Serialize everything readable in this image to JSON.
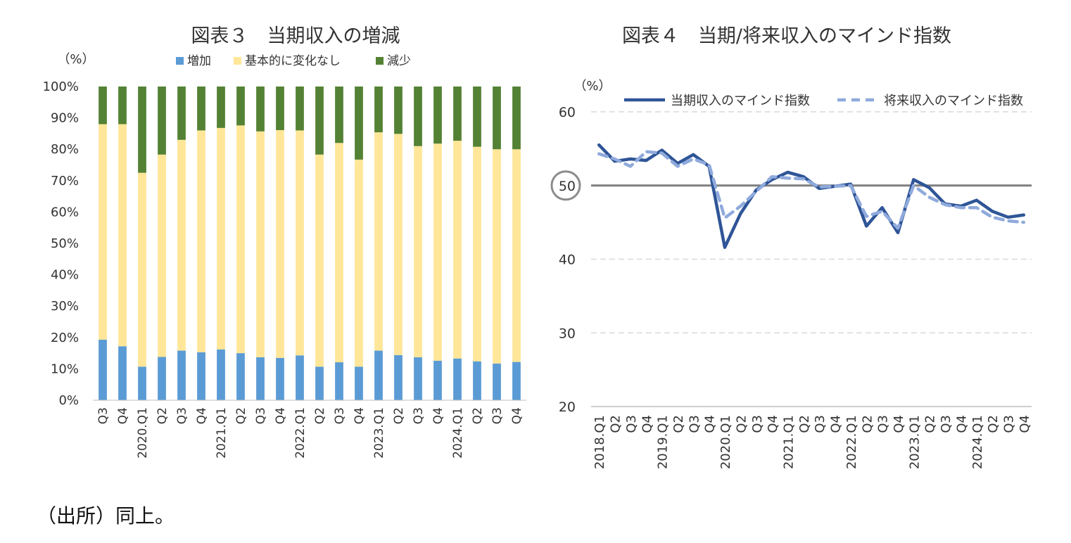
{
  "source_note": "（出所）同上。",
  "chart_data": [
    {
      "type": "bar",
      "stacked": true,
      "title": "図表３　当期収入の増減",
      "unit_label": "（%）",
      "ylim": [
        0,
        100
      ],
      "yticks": [
        "0%",
        "10%",
        "20%",
        "30%",
        "40%",
        "50%",
        "60%",
        "70%",
        "80%",
        "90%",
        "100%"
      ],
      "grid": false,
      "legend_position": "top",
      "categories": [
        "Q3",
        "Q4",
        "2020.Q1",
        "Q2",
        "Q3",
        "Q4",
        "2021.Q1",
        "Q2",
        "Q3",
        "Q4",
        "2022.Q1",
        "Q2",
        "Q3",
        "Q4",
        "2023.Q1",
        "Q2",
        "Q3",
        "Q4",
        "2024.Q1",
        "Q2",
        "Q3",
        "Q4"
      ],
      "series": [
        {
          "name": "増加",
          "color": "#5b9bd5",
          "values": [
            19.3,
            17.2,
            10.7,
            13.8,
            15.8,
            15.3,
            16.2,
            15.0,
            13.7,
            13.5,
            14.3,
            10.7,
            12.1,
            10.7,
            15.8,
            14.4,
            13.7,
            12.6,
            13.3,
            12.4,
            11.7,
            12.2
          ]
        },
        {
          "name": "基本的に変化なし",
          "color": "#ffe699",
          "values": [
            68.7,
            70.8,
            61.8,
            64.5,
            67.2,
            70.7,
            70.6,
            72.6,
            72.0,
            72.6,
            71.7,
            67.6,
            69.9,
            66.0,
            69.6,
            70.5,
            67.3,
            69.2,
            69.4,
            68.4,
            68.3,
            67.8
          ]
        },
        {
          "name": "減少",
          "color": "#548235",
          "values": [
            12.0,
            12.0,
            27.5,
            21.7,
            17.0,
            14.0,
            13.2,
            12.4,
            14.3,
            13.9,
            14.0,
            21.7,
            18.0,
            23.3,
            14.6,
            15.1,
            19.0,
            18.2,
            17.3,
            19.2,
            20.0,
            20.0
          ]
        }
      ]
    },
    {
      "type": "line",
      "title": "図表４　当期/将来収入のマインド指数",
      "unit_label": "（%）",
      "ylim": [
        20,
        60
      ],
      "yticks": [
        "20",
        "30",
        "40",
        "50",
        "60"
      ],
      "grid": true,
      "legend_position": "top",
      "reference_line": 50,
      "reference_label": "50",
      "categories": [
        "2018.Q1",
        "Q2",
        "Q3",
        "Q4",
        "2019.Q1",
        "Q2",
        "Q3",
        "Q4",
        "2020.Q1",
        "Q2",
        "Q3",
        "Q4",
        "2021.Q1",
        "Q2",
        "Q3",
        "Q4",
        "2022.Q1",
        "Q2",
        "Q3",
        "Q4",
        "2023.Q1",
        "Q2",
        "Q3",
        "Q4",
        "2024.Q1",
        "Q2",
        "Q3",
        "Q4"
      ],
      "series": [
        {
          "name": "当期収入のマインド指数",
          "color": "#2f5597",
          "dash": "solid",
          "values": [
            55.5,
            53.3,
            53.6,
            53.4,
            54.8,
            53.0,
            54.2,
            52.6,
            41.6,
            46.2,
            49.4,
            50.8,
            51.8,
            51.2,
            49.6,
            49.9,
            50.2,
            44.5,
            47.0,
            43.6,
            50.8,
            49.7,
            47.5,
            47.2,
            48.0,
            46.5,
            45.7,
            46.0
          ]
        },
        {
          "name": "将来収入のマインド指数",
          "color": "#8faadc",
          "dash": "dashed",
          "values": [
            54.3,
            53.6,
            52.6,
            54.6,
            54.4,
            52.6,
            53.6,
            52.8,
            45.6,
            47.2,
            49.2,
            51.2,
            51.0,
            50.9,
            49.8,
            49.9,
            50.0,
            45.8,
            46.5,
            44.2,
            50.0,
            48.4,
            47.4,
            47.0,
            47.0,
            45.7,
            45.2,
            45.0
          ]
        }
      ]
    }
  ]
}
